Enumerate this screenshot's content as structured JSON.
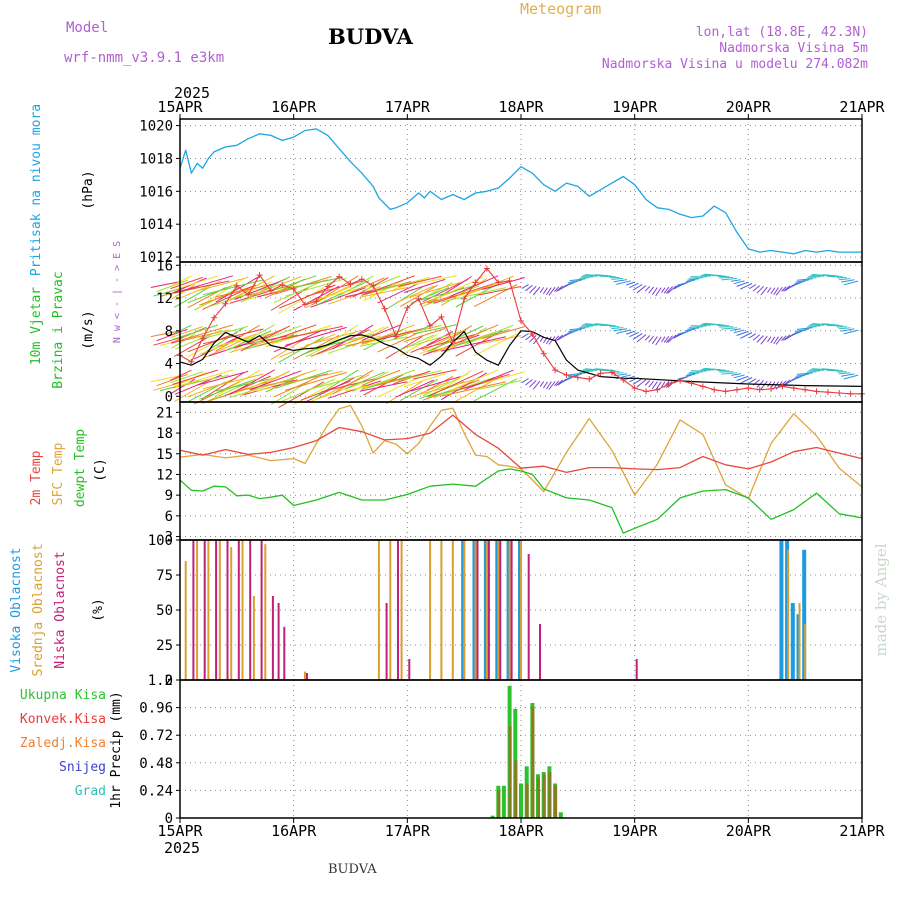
{
  "header": {
    "model_label": "Model",
    "model_name": "wrf-nmm_v3.9.1 e3km",
    "title": "BUDVA",
    "meteogram": "Meteogram",
    "location": "lon,lat (18.8E, 42.3N)",
    "elevation": "Nadmorska Visina 5m",
    "model_elevation": "Nadmorska Visina u modelu 274.082m",
    "footer_title": "BUDVA",
    "credit": "made by Angel"
  },
  "colors": {
    "pressure": "#1da5e6",
    "wind_speed": "#000000",
    "gust": "#e83c3c",
    "temp2m": "#e8473d",
    "sfc_temp": "#e0a53a",
    "dewpt": "#22c022",
    "high_cloud": "#1e9be0",
    "mid_cloud": "#d9a030",
    "low_cloud": "#c0207a",
    "total_precip": "#2ec12e",
    "conv_precip": "#e83c3c",
    "frozen_precip": "#f08030",
    "snow": "#4040d0",
    "hail": "#30c0b0",
    "grid": "#888888",
    "frame": "#000000"
  },
  "chart_data": {
    "time_axis": {
      "year": "2025",
      "ticks": [
        "15APR",
        "16APR",
        "17APR",
        "18APR",
        "19APR",
        "20APR",
        "21APR"
      ],
      "range_days": [
        0,
        6
      ]
    },
    "panels": [
      {
        "id": "pressure",
        "type": "line",
        "ylabel": "Pritisak na nivou mora",
        "unit": "(hPa)",
        "ylim": [
          1011.7,
          1020.4
        ],
        "ticks": [
          1012,
          1014,
          1016,
          1018,
          1020
        ],
        "series": [
          {
            "name": "Pritisak na nivou mora",
            "color_key": "pressure",
            "t": [
              0,
              0.05,
              0.1,
              0.15,
              0.2,
              0.25,
              0.3,
              0.4,
              0.5,
              0.6,
              0.7,
              0.8,
              0.9,
              1.0,
              1.1,
              1.2,
              1.3,
              1.4,
              1.5,
              1.6,
              1.7,
              1.75,
              1.85,
              1.9,
              2.0,
              2.1,
              2.15,
              2.2,
              2.3,
              2.4,
              2.5,
              2.6,
              2.7,
              2.8,
              2.9,
              3.0,
              3.1,
              3.2,
              3.3,
              3.4,
              3.5,
              3.6,
              3.7,
              3.8,
              3.9,
              4.0,
              4.1,
              4.2,
              4.3,
              4.4,
              4.5,
              4.6,
              4.7,
              4.8,
              4.9,
              5.0,
              5.1,
              5.2,
              5.3,
              5.4,
              5.5,
              5.6,
              5.7,
              5.8,
              5.9,
              6.0
            ],
            "values": [
              1017.4,
              1018.5,
              1017.1,
              1017.7,
              1017.4,
              1018.0,
              1018.4,
              1018.7,
              1018.8,
              1019.2,
              1019.5,
              1019.4,
              1019.1,
              1019.3,
              1019.7,
              1019.8,
              1019.4,
              1018.6,
              1017.8,
              1017.1,
              1016.3,
              1015.6,
              1014.9,
              1015.0,
              1015.3,
              1015.9,
              1015.6,
              1016.0,
              1015.5,
              1015.8,
              1015.5,
              1015.9,
              1016.0,
              1016.2,
              1016.8,
              1017.5,
              1017.1,
              1016.4,
              1016.0,
              1016.5,
              1016.3,
              1015.7,
              1016.1,
              1016.5,
              1016.9,
              1016.4,
              1015.5,
              1015.0,
              1014.9,
              1014.6,
              1014.4,
              1014.5,
              1015.1,
              1014.7,
              1013.5,
              1012.5,
              1012.3,
              1012.4,
              1012.3,
              1012.2,
              1012.4,
              1012.3,
              1012.4,
              1012.3,
              1012.3,
              1012.3
            ]
          }
        ]
      },
      {
        "id": "wind",
        "type": "line+barbs",
        "ylabel_lines": [
          "10m Vjetar",
          "Brzina i Pravac"
        ],
        "unit": "(m/s)",
        "ylim": [
          -0.7,
          16.4
        ],
        "ticks": [
          0,
          4,
          8,
          12,
          16
        ],
        "compass_label": "N w < - | - > E S",
        "barb_rows_y": [
          2.5,
          8.0,
          14.0
        ],
        "series": [
          {
            "name": "Brzina vjetra",
            "color_key": "wind_speed",
            "t": [
              0,
              0.1,
              0.2,
              0.3,
              0.4,
              0.5,
              0.6,
              0.7,
              0.8,
              0.9,
              1.0,
              1.1,
              1.2,
              1.3,
              1.4,
              1.5,
              1.6,
              1.7,
              1.8,
              1.9,
              2.0,
              2.1,
              2.2,
              2.3,
              2.4,
              2.5,
              2.6,
              2.7,
              2.8,
              2.9,
              3.0,
              3.1,
              3.2,
              3.3,
              3.4,
              3.5,
              3.6,
              3.7,
              3.8,
              3.9,
              4.0,
              4.5,
              5.0,
              5.5,
              6.0
            ],
            "values": [
              4.2,
              3.8,
              4.5,
              6.5,
              7.8,
              7.2,
              6.6,
              7.4,
              6.2,
              5.9,
              5.6,
              5.8,
              5.9,
              6.3,
              6.9,
              7.4,
              7.5,
              7.1,
              6.4,
              5.9,
              5.0,
              4.6,
              3.8,
              4.9,
              6.6,
              7.9,
              5.4,
              4.4,
              3.8,
              6.2,
              8.0,
              7.9,
              7.2,
              6.8,
              4.4,
              3.2,
              2.8,
              2.4,
              2.3,
              2.2,
              2.2,
              1.8,
              1.5,
              1.3,
              1.2
            ]
          },
          {
            "name": "Udari vjetra",
            "color_key": "gust",
            "t": [
              0,
              0.1,
              0.2,
              0.3,
              0.4,
              0.5,
              0.6,
              0.7,
              0.8,
              0.9,
              1.0,
              1.1,
              1.2,
              1.3,
              1.4,
              1.5,
              1.6,
              1.7,
              1.8,
              1.9,
              2.0,
              2.1,
              2.2,
              2.3,
              2.4,
              2.5,
              2.6,
              2.7,
              2.8,
              2.9,
              3.0,
              3.1,
              3.2,
              3.3,
              3.4,
              3.5,
              3.6,
              3.7,
              3.8,
              3.9,
              4.0,
              4.1,
              4.2,
              4.3,
              4.4,
              4.5,
              4.6,
              4.7,
              4.8,
              4.9,
              5.0,
              5.1,
              5.2,
              5.3,
              5.4,
              5.5,
              5.6,
              5.7,
              5.8,
              5.9,
              6.0
            ],
            "values": [
              5.0,
              4.2,
              7.1,
              9.6,
              11.3,
              13.5,
              12.4,
              14.8,
              12.9,
              13.6,
              13.1,
              11.2,
              11.6,
              13.4,
              14.6,
              13.7,
              14.3,
              13.5,
              10.7,
              7.3,
              10.8,
              11.9,
              8.6,
              9.7,
              6.6,
              11.9,
              13.9,
              15.6,
              13.9,
              14.1,
              9.2,
              7.6,
              5.2,
              3.2,
              2.6,
              2.3,
              2.1,
              2.8,
              2.9,
              2.0,
              1.0,
              0.6,
              0.8,
              1.5,
              1.9,
              1.6,
              1.2,
              0.8,
              0.6,
              0.8,
              1.0,
              0.8,
              0.9,
              1.2,
              1.0,
              0.8,
              0.6,
              0.5,
              0.4,
              0.3,
              0.3
            ]
          }
        ]
      },
      {
        "id": "temperature",
        "type": "line",
        "ylabel_lines": [
          "2m Temp",
          "SFC Temp",
          "dewpt Temp"
        ],
        "unit": "(C)",
        "ylim": [
          2.5,
          22.5
        ],
        "ticks": [
          3,
          6,
          9,
          12,
          15,
          18,
          21
        ],
        "series": [
          {
            "name": "2m Temp",
            "color_key": "temp2m",
            "t": [
              0,
              0.2,
              0.4,
              0.6,
              0.8,
              1.0,
              1.2,
              1.4,
              1.6,
              1.8,
              2.0,
              2.2,
              2.4,
              2.6,
              2.8,
              3.0,
              3.2,
              3.4,
              3.6,
              3.8,
              4.0,
              4.2,
              4.4,
              4.6,
              4.8,
              5.0,
              5.2,
              5.4,
              5.6,
              5.8,
              6.0
            ],
            "values": [
              15.5,
              14.8,
              15.6,
              14.9,
              15.2,
              15.9,
              16.9,
              18.8,
              18.2,
              17.0,
              17.2,
              18.0,
              20.6,
              17.8,
              15.8,
              12.9,
              13.2,
              12.3,
              13.0,
              13.0,
              12.8,
              12.7,
              13.0,
              14.6,
              13.4,
              12.8,
              13.8,
              15.3,
              15.9,
              15.1,
              14.3
            ]
          },
          {
            "name": "SFC Temp",
            "color_key": "sfc_temp",
            "t": [
              0,
              0.2,
              0.4,
              0.6,
              0.8,
              1.0,
              1.1,
              1.2,
              1.3,
              1.4,
              1.5,
              1.6,
              1.7,
              1.8,
              1.9,
              2.0,
              2.1,
              2.2,
              2.3,
              2.4,
              2.5,
              2.6,
              2.7,
              2.8,
              2.9,
              3.0,
              3.1,
              3.2,
              3.4,
              3.6,
              3.8,
              4.0,
              4.2,
              4.4,
              4.6,
              4.8,
              5.0,
              5.2,
              5.4,
              5.6,
              5.8,
              6.0
            ],
            "values": [
              14.5,
              14.9,
              14.4,
              14.8,
              14.0,
              14.3,
              13.6,
              16.5,
              19.2,
              21.5,
              22.0,
              19.0,
              15.1,
              16.9,
              16.4,
              15.0,
              16.5,
              19.0,
              21.3,
              21.6,
              18.0,
              14.8,
              14.6,
              13.4,
              13.2,
              12.8,
              11.2,
              9.5,
              15.2,
              20.1,
              15.5,
              9.0,
              13.5,
              19.9,
              17.8,
              10.5,
              8.5,
              16.5,
              20.8,
              17.6,
              12.9,
              10.2
            ]
          },
          {
            "name": "dewpt Temp",
            "color_key": "dewpt",
            "t": [
              0,
              0.1,
              0.2,
              0.3,
              0.4,
              0.5,
              0.6,
              0.7,
              0.8,
              0.9,
              1.0,
              1.2,
              1.4,
              1.6,
              1.8,
              2.0,
              2.2,
              2.4,
              2.6,
              2.8,
              2.9,
              3.0,
              3.1,
              3.2,
              3.4,
              3.6,
              3.8,
              3.9,
              4.0,
              4.2,
              4.4,
              4.6,
              4.8,
              5.0,
              5.2,
              5.4,
              5.6,
              5.8,
              6.0
            ],
            "values": [
              11.2,
              9.7,
              9.6,
              10.3,
              10.2,
              8.9,
              9.0,
              8.5,
              8.7,
              9.0,
              7.5,
              8.3,
              9.4,
              8.3,
              8.3,
              9.1,
              10.3,
              10.6,
              10.3,
              12.5,
              12.8,
              12.5,
              12.0,
              9.9,
              8.6,
              8.3,
              7.2,
              3.5,
              4.2,
              5.5,
              8.6,
              9.6,
              9.8,
              8.6,
              5.5,
              6.9,
              9.3,
              6.3,
              5.7
            ]
          }
        ]
      },
      {
        "id": "cloud",
        "type": "bar",
        "ylabel_lines": [
          "Visoka Oblacnost",
          "Srednja Oblacnost",
          "Niska Oblacnost"
        ],
        "unit": "(%)",
        "ylim": [
          0,
          100
        ],
        "ticks": [
          0,
          25,
          50,
          75,
          100
        ],
        "series": [
          {
            "name": "Visoka Oblacnost",
            "color_key": "high_cloud",
            "t": [
              2.5,
              2.6,
              2.7,
              2.8,
              2.9,
              3.0,
              5.3,
              5.35,
              5.4,
              5.45,
              5.5
            ],
            "values": [
              100,
              100,
              100,
              100,
              100,
              100,
              100,
              100,
              55,
              47,
              93
            ]
          },
          {
            "name": "Srednja Oblacnost",
            "color_key": "mid_cloud",
            "t": [
              0.05,
              0.15,
              0.25,
              0.35,
              0.45,
              0.55,
              0.65,
              0.75,
              1.1,
              1.75,
              1.85,
              1.95,
              2.2,
              2.3,
              2.4,
              2.5,
              2.6,
              2.7,
              2.8,
              2.9,
              3.0,
              4.0,
              5.35,
              5.45,
              5.5
            ],
            "values": [
              85,
              100,
              100,
              100,
              95,
              100,
              60,
              97,
              6,
              100,
              100,
              100,
              100,
              100,
              100,
              100,
              100,
              100,
              100,
              100,
              100,
              0,
              93,
              55,
              40
            ]
          },
          {
            "name": "Niska Oblacnost",
            "color_key": "low_cloud",
            "t": [
              0.1,
              0.2,
              0.3,
              0.4,
              0.5,
              0.6,
              0.7,
              0.8,
              0.85,
              0.9,
              1.1,
              1.8,
              1.9,
              2.0,
              2.6,
              2.7,
              2.8,
              2.9,
              3.05,
              3.15,
              4.0
            ],
            "values": [
              100,
              100,
              100,
              100,
              100,
              100,
              100,
              60,
              55,
              38,
              5,
              55,
              100,
              15,
              100,
              100,
              100,
              100,
              90,
              40,
              15
            ]
          }
        ]
      },
      {
        "id": "precip",
        "type": "bar",
        "ylabel": "1hr Precip (mm)",
        "unit": "(mm)",
        "ylim": [
          0,
          1.2
        ],
        "ticks": [
          0,
          0.24,
          0.48,
          0.72,
          0.96,
          1.2
        ],
        "legend": [
          "Ukupna Kisa",
          "Konvek.Kisa",
          "Zaledj.Kisa",
          "Snijeg",
          "Grad"
        ],
        "series": [
          {
            "name": "Ukupna Kisa",
            "color_key": "total_precip",
            "t": [
              2.75,
              2.8,
              2.85,
              2.9,
              2.95,
              3.0,
              3.05,
              3.1,
              3.15,
              3.2,
              3.25,
              3.3,
              3.35
            ],
            "values": [
              0.02,
              0.28,
              0.28,
              1.15,
              0.95,
              0.3,
              0.45,
              1.0,
              0.38,
              0.4,
              0.45,
              0.3,
              0.05
            ]
          },
          {
            "name": "Konvek.Kisa",
            "color_key": "conv_precip",
            "t": [
              2.8,
              2.9,
              2.95,
              3.05,
              3.1,
              3.15,
              3.2,
              3.25,
              3.3
            ],
            "values": [
              0.24,
              0.8,
              0.5,
              0.3,
              0.97,
              0.35,
              0.38,
              0.4,
              0.28
            ]
          },
          {
            "name": "Zaledj.Kisa",
            "color_key": "frozen_precip",
            "t": [],
            "values": []
          },
          {
            "name": "Snijeg",
            "color_key": "snow",
            "t": [],
            "values": []
          },
          {
            "name": "Grad",
            "color_key": "hail",
            "t": [],
            "values": []
          }
        ]
      }
    ]
  }
}
